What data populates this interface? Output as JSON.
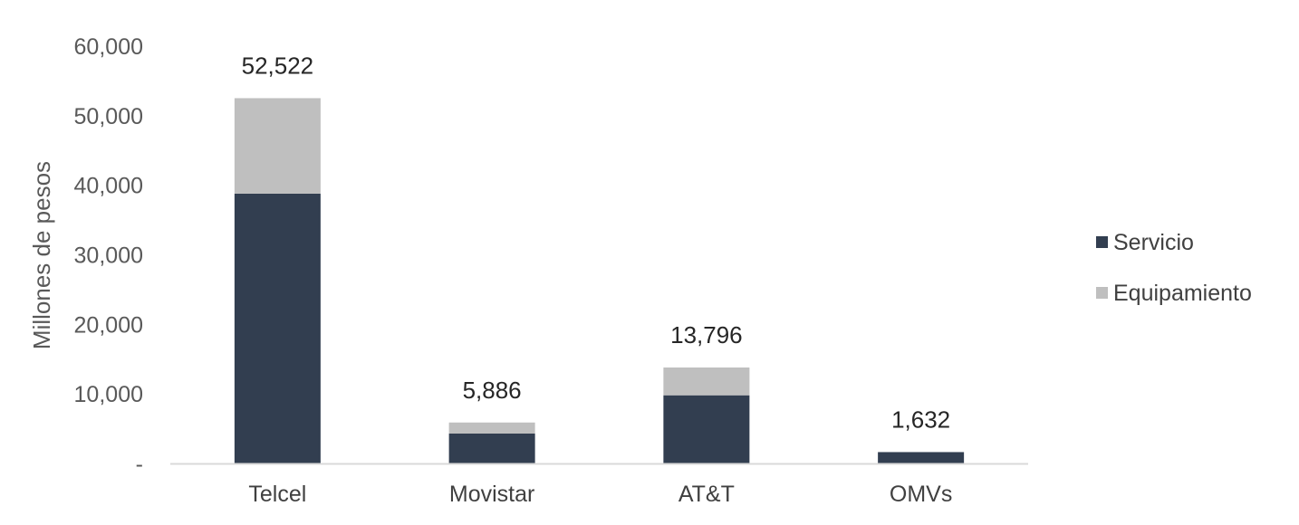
{
  "chart_data": {
    "type": "bar",
    "stacked": true,
    "title": "",
    "xlabel": "",
    "ylabel": "Millones de pesos",
    "ylim": [
      0,
      60000
    ],
    "yticks": [
      0,
      10000,
      20000,
      30000,
      40000,
      50000,
      60000
    ],
    "ytick_labels": [
      "-",
      "10,000",
      "20,000",
      "30,000",
      "40,000",
      "50,000",
      "60,000"
    ],
    "categories": [
      "Telcel",
      "Movistar",
      "AT&T",
      "OMVs"
    ],
    "series": [
      {
        "name": "Servicio",
        "color": "#323e50",
        "values": [
          38800,
          4300,
          9800,
          1632
        ]
      },
      {
        "name": "Equipamiento",
        "color": "#bfbfbf",
        "values": [
          13722,
          1586,
          3996,
          0
        ]
      }
    ],
    "totals": [
      52522,
      5886,
      13796,
      1632
    ],
    "total_labels": [
      "52,522",
      "5,886",
      "13,796",
      "1,632"
    ],
    "grid": false,
    "legend_position": "right",
    "axis_color": "#d9d9d9"
  }
}
